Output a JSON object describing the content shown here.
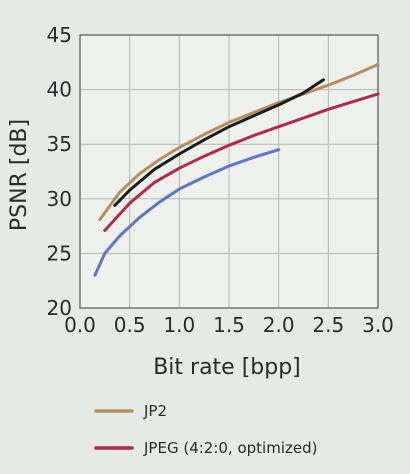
{
  "chart_data": {
    "type": "line",
    "title": "",
    "xlabel": "Bit rate [bpp]",
    "ylabel": "PSNR [dB]",
    "xlim": [
      0.0,
      3.0
    ],
    "ylim": [
      20,
      45
    ],
    "xticks": [
      "0.0",
      "0.5",
      "1.0",
      "1.5",
      "2.0",
      "2.5",
      "3.0"
    ],
    "yticks": [
      "20",
      "25",
      "30",
      "35",
      "40",
      "45"
    ],
    "grid": true,
    "legend_position": "bottom",
    "series": [
      {
        "name": "JP2",
        "color": "#b39062",
        "legend": true,
        "points": [
          [
            0.2,
            28.1
          ],
          [
            0.4,
            30.6
          ],
          [
            0.6,
            32.3
          ],
          [
            0.8,
            33.6
          ],
          [
            1.0,
            34.7
          ],
          [
            1.25,
            35.9
          ],
          [
            1.5,
            37.0
          ],
          [
            1.75,
            37.9
          ],
          [
            2.0,
            38.8
          ],
          [
            2.25,
            39.6
          ],
          [
            2.5,
            40.4
          ],
          [
            2.75,
            41.3
          ],
          [
            3.0,
            42.3
          ]
        ]
      },
      {
        "name": "JPEG (4:2:0, optimized)",
        "color": "#b22a4e",
        "legend": true,
        "points": [
          [
            0.25,
            27.1
          ],
          [
            0.5,
            29.6
          ],
          [
            0.75,
            31.5
          ],
          [
            1.0,
            32.8
          ],
          [
            1.25,
            33.9
          ],
          [
            1.5,
            34.9
          ],
          [
            1.75,
            35.8
          ],
          [
            2.0,
            36.6
          ],
          [
            2.25,
            37.4
          ],
          [
            2.5,
            38.2
          ],
          [
            2.75,
            38.9
          ],
          [
            3.0,
            39.6
          ]
        ]
      },
      {
        "name": "",
        "color": "#1c1c1c",
        "legend": false,
        "points": [
          [
            0.35,
            29.4
          ],
          [
            0.5,
            30.8
          ],
          [
            0.75,
            32.7
          ],
          [
            1.0,
            34.1
          ],
          [
            1.25,
            35.4
          ],
          [
            1.5,
            36.6
          ],
          [
            1.75,
            37.6
          ],
          [
            2.0,
            38.6
          ],
          [
            2.25,
            39.7
          ],
          [
            2.45,
            40.9
          ]
        ]
      },
      {
        "name": "",
        "color": "#6275cc",
        "legend": false,
        "points": [
          [
            0.15,
            23.0
          ],
          [
            0.25,
            25.0
          ],
          [
            0.4,
            26.6
          ],
          [
            0.6,
            28.3
          ],
          [
            0.8,
            29.7
          ],
          [
            1.0,
            30.9
          ],
          [
            1.25,
            32.0
          ],
          [
            1.5,
            33.0
          ],
          [
            1.75,
            33.8
          ],
          [
            2.0,
            34.5
          ]
        ]
      }
    ]
  }
}
